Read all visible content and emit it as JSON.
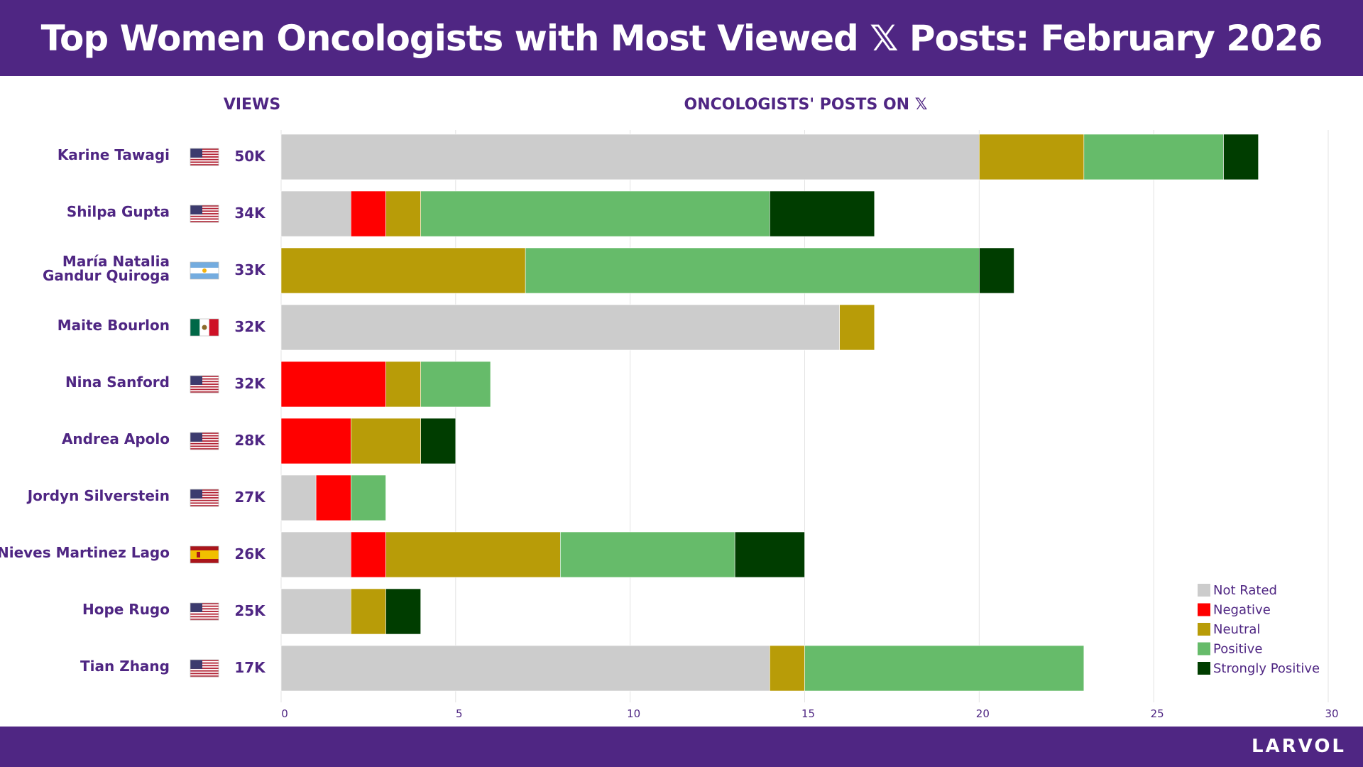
{
  "title": "Top Women Oncologists with Most Viewed 𝕏 Posts: February 2026",
  "brand": "LARVOL",
  "colors": {
    "purple": "#4f2683",
    "Not Rated": "#cccccc",
    "Negative": "#ff0000",
    "Neutral": "#b89c08",
    "Positive": "#66bb6a",
    "Strongly Positive": "#003d00"
  },
  "chart_data": {
    "type": "bar",
    "orientation": "horizontal",
    "stacked": true,
    "title": "ONCOLOGISTS' POSTS ON 𝕏",
    "views_header": "VIEWS",
    "categories": [
      "Karine Tawagi",
      "Shilpa Gupta",
      "María Natalia Gandur Quiroga",
      "Maite Bourlon",
      "Nina Sanford",
      "Andrea Apolo",
      "Jordyn Silverstein",
      "Nieves Martinez Lago",
      "Hope Rugo",
      "Tian Zhang"
    ],
    "name_lines": [
      [
        "Karine Tawagi"
      ],
      [
        "Shilpa Gupta"
      ],
      [
        "María Natalia",
        "Gandur Quiroga"
      ],
      [
        "Maite Bourlon"
      ],
      [
        "Nina Sanford"
      ],
      [
        "Andrea Apolo"
      ],
      [
        "Jordyn Silverstein"
      ],
      [
        "Nieves Martinez Lago"
      ],
      [
        "Hope Rugo"
      ],
      [
        "Tian Zhang"
      ]
    ],
    "countries": [
      "US",
      "US",
      "AR",
      "MX",
      "US",
      "US",
      "US",
      "ES",
      "US",
      "US"
    ],
    "views": [
      "50K",
      "34K",
      "33K",
      "32K",
      "32K",
      "28K",
      "27K",
      "26K",
      "25K",
      "17K"
    ],
    "series": [
      {
        "name": "Not Rated",
        "values": [
          20,
          2,
          0,
          16,
          0,
          0,
          1,
          2,
          2,
          14
        ]
      },
      {
        "name": "Negative",
        "values": [
          0,
          1,
          0,
          0,
          3,
          2,
          1,
          1,
          0,
          0
        ]
      },
      {
        "name": "Neutral",
        "values": [
          3,
          1,
          7,
          1,
          1,
          2,
          0,
          5,
          1,
          1
        ]
      },
      {
        "name": "Positive",
        "values": [
          4,
          10,
          13,
          0,
          2,
          0,
          1,
          5,
          0,
          8
        ]
      },
      {
        "name": "Strongly Positive",
        "values": [
          1,
          3,
          1,
          0,
          0,
          1,
          0,
          2,
          1,
          0
        ]
      }
    ],
    "xlim": [
      0,
      30
    ],
    "xticks": [
      0,
      5,
      10,
      15,
      20,
      25,
      30
    ],
    "grid": true,
    "legend": "bottom-right"
  }
}
